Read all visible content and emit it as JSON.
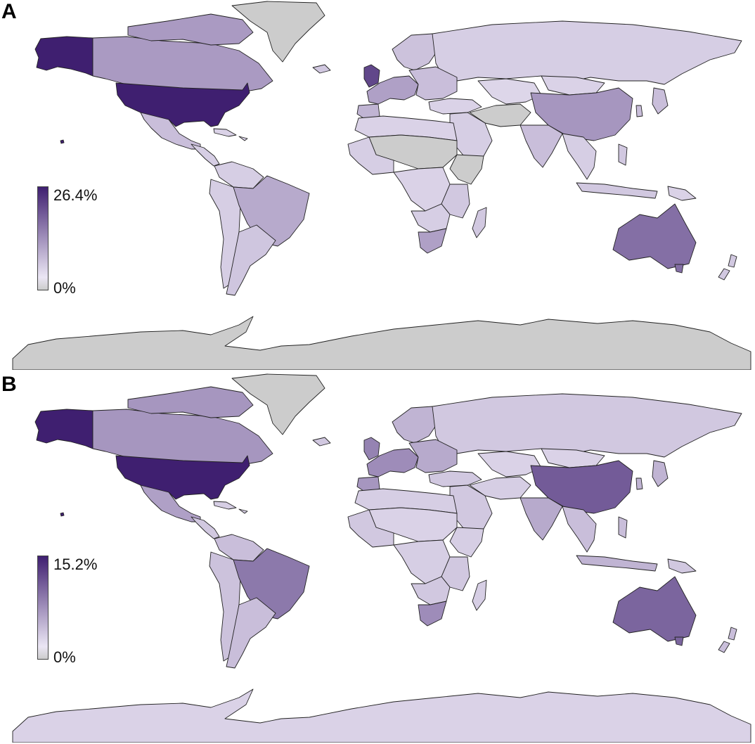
{
  "colors": {
    "no_data": "#cccccc",
    "ramp_low": "#ebe6f4",
    "ramp_high": "#3f1f70",
    "border": "#222222"
  },
  "panels": [
    {
      "letter": "A",
      "legend": {
        "max_label": "26.4%",
        "min_label": "0%"
      },
      "values": {
        "alaska": 1.0,
        "usa": 1.0,
        "hawaii": 1.0,
        "canada": 0.38,
        "arctic_islands": 0.38,
        "greenland": null,
        "mexico": 0.2,
        "central_america": 0.12,
        "caribbean": 0.1,
        "colombia_venezuela": 0.12,
        "brazil": 0.3,
        "andean_west": 0.12,
        "southern_cone": 0.16,
        "russia": 0.12,
        "scandinavia": 0.18,
        "uk_ireland": 0.8,
        "iceland": 0.15,
        "western_europe": 0.35,
        "eastern_europe": 0.2,
        "iberia": 0.25,
        "turkey_caucasus": 0.1,
        "central_asia": 0.08,
        "mongolia": 0.1,
        "china": 0.4,
        "korea_japan": 0.2,
        "middle_east": 0.12,
        "iran_afghan": null,
        "india": 0.2,
        "mainland_se_asia": 0.12,
        "indonesia": 0.15,
        "philippines": 0.15,
        "png": 0.1,
        "north_africa": 0.1,
        "sahel": null,
        "west_africa": 0.12,
        "central_africa": 0.1,
        "horn_africa": null,
        "east_africa": 0.15,
        "southern_africa": 0.12,
        "south_africa": 0.35,
        "madagascar": 0.15,
        "australia": 0.6,
        "tasmania": 0.6,
        "new_zealand": 0.15,
        "antarctica": null
      }
    },
    {
      "letter": "B",
      "legend": {
        "max_label": "15.2%",
        "min_label": "0%"
      },
      "values": {
        "alaska": 1.0,
        "usa": 1.0,
        "hawaii": 1.0,
        "canada": 0.4,
        "arctic_islands": 0.4,
        "greenland": null,
        "mexico": 0.35,
        "central_america": 0.15,
        "caribbean": 0.12,
        "colombia_venezuela": 0.2,
        "brazil": 0.55,
        "andean_west": 0.18,
        "southern_cone": 0.2,
        "russia": 0.15,
        "scandinavia": 0.25,
        "uk_ireland": 0.5,
        "iceland": 0.15,
        "western_europe": 0.45,
        "eastern_europe": 0.3,
        "iberia": 0.4,
        "turkey_caucasus": 0.15,
        "central_asia": 0.1,
        "mongolia": 0.1,
        "china": 0.7,
        "korea_japan": 0.25,
        "middle_east": 0.15,
        "iran_afghan": 0.12,
        "india": 0.3,
        "mainland_se_asia": 0.2,
        "indonesia": 0.25,
        "philippines": 0.2,
        "png": 0.15,
        "north_africa": 0.12,
        "sahel": 0.1,
        "west_africa": 0.15,
        "central_africa": 0.12,
        "horn_africa": 0.12,
        "east_africa": 0.15,
        "southern_africa": 0.15,
        "south_africa": 0.45,
        "madagascar": 0.12,
        "australia": 0.65,
        "tasmania": 0.65,
        "new_zealand": 0.2,
        "antarctica": 0.1
      }
    }
  ]
}
